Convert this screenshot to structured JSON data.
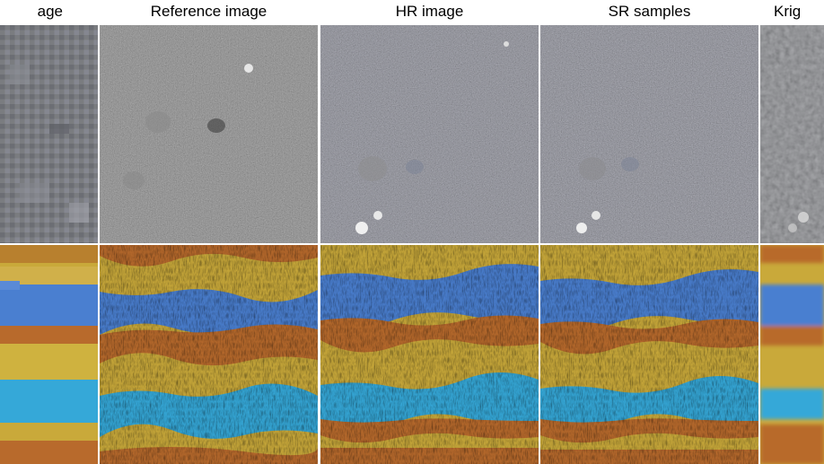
{
  "columns": [
    {
      "key": "lr",
      "title": "age"
    },
    {
      "key": "ref",
      "title": "Reference image"
    },
    {
      "key": "hr",
      "title": "HR image"
    },
    {
      "key": "sr",
      "title": "SR samples"
    },
    {
      "key": "krig",
      "title": "Krig"
    }
  ],
  "rows": [
    {
      "key": "stone",
      "subject": "grey stone texture"
    },
    {
      "key": "knit",
      "subject": "striped knitted fabric"
    }
  ],
  "palette": {
    "stone_base": "#6e6e6e",
    "stone_dark": "#4a4a4a",
    "stone_light": "#9a9a9a",
    "knit_yellow": "#c9a93a",
    "knit_blue": "#4a7fd0",
    "knit_orange": "#b86a2c",
    "knit_cyan": "#35a8d8"
  }
}
